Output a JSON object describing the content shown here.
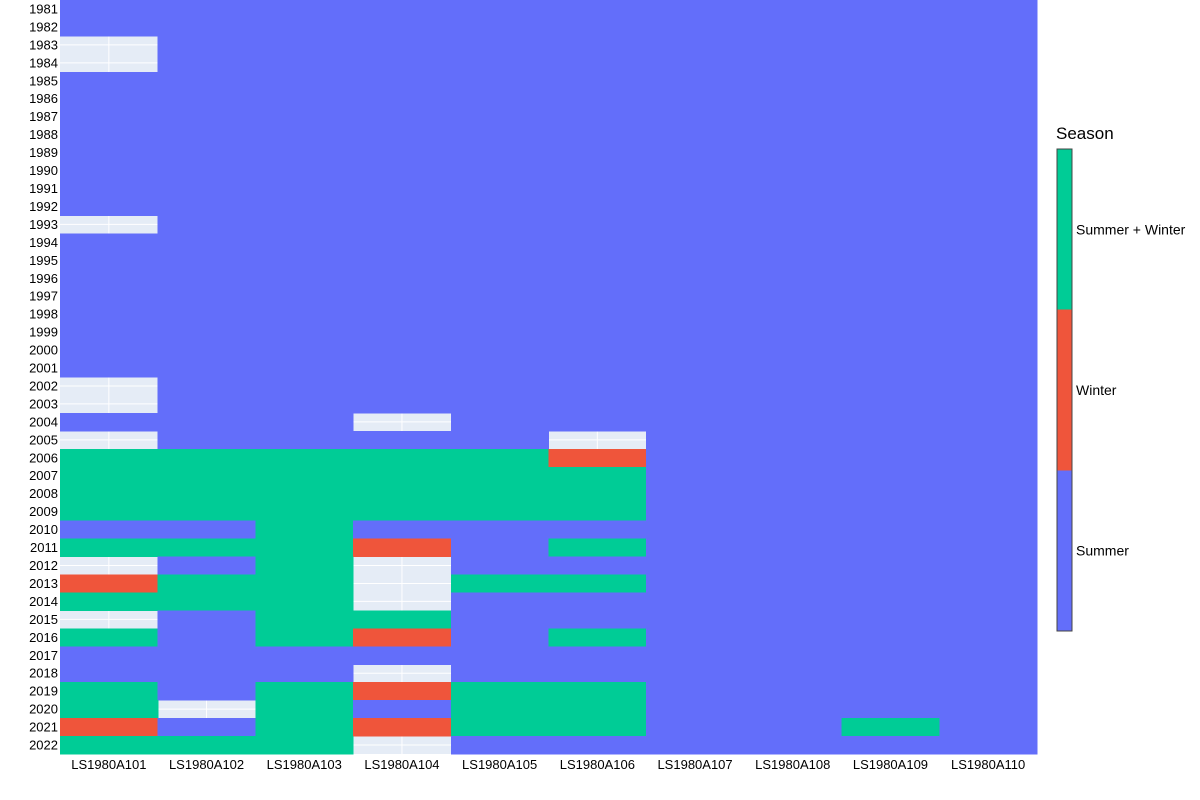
{
  "chart_data": {
    "type": "heatmap",
    "legend_title": "Season",
    "legend_placement": "right",
    "x": [
      "LS1980A101",
      "LS1980A102",
      "LS1980A103",
      "LS1980A104",
      "LS1980A105",
      "LS1980A106",
      "LS1980A107",
      "LS1980A108",
      "LS1980A109",
      "LS1980A110"
    ],
    "y": [
      "1981",
      "1982",
      "1983",
      "1984",
      "1985",
      "1986",
      "1987",
      "1988",
      "1989",
      "1990",
      "1991",
      "1992",
      "1993",
      "1994",
      "1995",
      "1996",
      "1997",
      "1998",
      "1999",
      "2000",
      "2001",
      "2002",
      "2003",
      "2004",
      "2005",
      "2006",
      "2007",
      "2008",
      "2009",
      "2010",
      "2011",
      "2012",
      "2013",
      "2014",
      "2015",
      "2016",
      "2017",
      "2018",
      "2019",
      "2020",
      "2021",
      "2022"
    ],
    "categories": [
      {
        "code": "S",
        "label": "Summer",
        "color": "#636efa"
      },
      {
        "code": "W",
        "label": "Winter",
        "color": "#ef553b"
      },
      {
        "code": "B",
        "label": "Summer + Winter",
        "color": "#00cc96"
      }
    ],
    "missing_color": "#e5ecf6",
    "grid": true,
    "values": [
      [
        "S",
        "S",
        "S",
        "S",
        "S",
        "S",
        "S",
        "S",
        "S",
        "S"
      ],
      [
        "S",
        "S",
        "S",
        "S",
        "S",
        "S",
        "S",
        "S",
        "S",
        "S"
      ],
      [
        null,
        "S",
        "S",
        "S",
        "S",
        "S",
        "S",
        "S",
        "S",
        "S"
      ],
      [
        null,
        "S",
        "S",
        "S",
        "S",
        "S",
        "S",
        "S",
        "S",
        "S"
      ],
      [
        "S",
        "S",
        "S",
        "S",
        "S",
        "S",
        "S",
        "S",
        "S",
        "S"
      ],
      [
        "S",
        "S",
        "S",
        "S",
        "S",
        "S",
        "S",
        "S",
        "S",
        "S"
      ],
      [
        "S",
        "S",
        "S",
        "S",
        "S",
        "S",
        "S",
        "S",
        "S",
        "S"
      ],
      [
        "S",
        "S",
        "S",
        "S",
        "S",
        "S",
        "S",
        "S",
        "S",
        "S"
      ],
      [
        "S",
        "S",
        "S",
        "S",
        "S",
        "S",
        "S",
        "S",
        "S",
        "S"
      ],
      [
        "S",
        "S",
        "S",
        "S",
        "S",
        "S",
        "S",
        "S",
        "S",
        "S"
      ],
      [
        "S",
        "S",
        "S",
        "S",
        "S",
        "S",
        "S",
        "S",
        "S",
        "S"
      ],
      [
        "S",
        "S",
        "S",
        "S",
        "S",
        "S",
        "S",
        "S",
        "S",
        "S"
      ],
      [
        null,
        "S",
        "S",
        "S",
        "S",
        "S",
        "S",
        "S",
        "S",
        "S"
      ],
      [
        "S",
        "S",
        "S",
        "S",
        "S",
        "S",
        "S",
        "S",
        "S",
        "S"
      ],
      [
        "S",
        "S",
        "S",
        "S",
        "S",
        "S",
        "S",
        "S",
        "S",
        "S"
      ],
      [
        "S",
        "S",
        "S",
        "S",
        "S",
        "S",
        "S",
        "S",
        "S",
        "S"
      ],
      [
        "S",
        "S",
        "S",
        "S",
        "S",
        "S",
        "S",
        "S",
        "S",
        "S"
      ],
      [
        "S",
        "S",
        "S",
        "S",
        "S",
        "S",
        "S",
        "S",
        "S",
        "S"
      ],
      [
        "S",
        "S",
        "S",
        "S",
        "S",
        "S",
        "S",
        "S",
        "S",
        "S"
      ],
      [
        "S",
        "S",
        "S",
        "S",
        "S",
        "S",
        "S",
        "S",
        "S",
        "S"
      ],
      [
        "S",
        "S",
        "S",
        "S",
        "S",
        "S",
        "S",
        "S",
        "S",
        "S"
      ],
      [
        null,
        "S",
        "S",
        "S",
        "S",
        "S",
        "S",
        "S",
        "S",
        "S"
      ],
      [
        null,
        "S",
        "S",
        "S",
        "S",
        "S",
        "S",
        "S",
        "S",
        "S"
      ],
      [
        "S",
        "S",
        "S",
        null,
        "S",
        "S",
        "S",
        "S",
        "S",
        "S"
      ],
      [
        null,
        "S",
        "S",
        "S",
        "S",
        null,
        "S",
        "S",
        "S",
        "S"
      ],
      [
        "B",
        "B",
        "B",
        "B",
        "B",
        "W",
        "S",
        "S",
        "S",
        "S"
      ],
      [
        "B",
        "B",
        "B",
        "B",
        "B",
        "B",
        "S",
        "S",
        "S",
        "S"
      ],
      [
        "B",
        "B",
        "B",
        "B",
        "B",
        "B",
        "S",
        "S",
        "S",
        "S"
      ],
      [
        "B",
        "B",
        "B",
        "B",
        "B",
        "B",
        "S",
        "S",
        "S",
        "S"
      ],
      [
        "S",
        "S",
        "B",
        "S",
        "S",
        "S",
        "S",
        "S",
        "S",
        "S"
      ],
      [
        "B",
        "B",
        "B",
        "W",
        "S",
        "B",
        "S",
        "S",
        "S",
        "S"
      ],
      [
        null,
        "S",
        "B",
        null,
        "S",
        "S",
        "S",
        "S",
        "S",
        "S"
      ],
      [
        "W",
        "B",
        "B",
        null,
        "B",
        "B",
        "S",
        "S",
        "S",
        "S"
      ],
      [
        "B",
        "B",
        "B",
        null,
        "S",
        "S",
        "S",
        "S",
        "S",
        "S"
      ],
      [
        null,
        "S",
        "B",
        "B",
        "S",
        "S",
        "S",
        "S",
        "S",
        "S"
      ],
      [
        "B",
        "S",
        "B",
        "W",
        "S",
        "B",
        "S",
        "S",
        "S",
        "S"
      ],
      [
        "S",
        "S",
        "S",
        "S",
        "S",
        "S",
        "S",
        "S",
        "S",
        "S"
      ],
      [
        "S",
        "S",
        "S",
        null,
        "S",
        "S",
        "S",
        "S",
        "S",
        "S"
      ],
      [
        "B",
        "S",
        "B",
        "W",
        "B",
        "B",
        "S",
        "S",
        "S",
        "S"
      ],
      [
        "B",
        null,
        "B",
        "S",
        "B",
        "B",
        "S",
        "S",
        "S",
        "S"
      ],
      [
        "W",
        "S",
        "B",
        "W",
        "B",
        "B",
        "S",
        "S",
        "B",
        "S"
      ],
      [
        "B",
        "B",
        "B",
        null,
        "S",
        "S",
        "S",
        "S",
        "S",
        "S"
      ]
    ]
  }
}
